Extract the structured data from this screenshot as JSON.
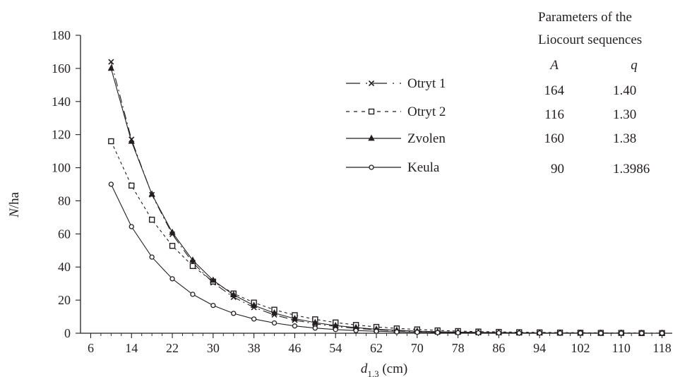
{
  "chart_data": {
    "type": "line",
    "title": "",
    "xlabel": {
      "main": "d",
      "sub": "1.3",
      "unit": " (cm)"
    },
    "ylabel": {
      "main": "N",
      "unit": "/ha"
    },
    "xlim": [
      4,
      120
    ],
    "ylim": [
      0,
      180
    ],
    "x_ticks": [
      6,
      14,
      22,
      30,
      38,
      46,
      54,
      62,
      70,
      78,
      86,
      94,
      102,
      110,
      118
    ],
    "y_ticks": [
      0,
      20,
      40,
      60,
      80,
      100,
      120,
      140,
      160,
      180
    ],
    "grid": false,
    "legend_position": "top-center",
    "x": [
      10,
      14,
      18,
      22,
      26,
      30,
      34,
      38,
      42,
      46,
      50,
      54,
      58,
      62,
      66,
      70,
      74,
      78,
      82,
      86,
      90,
      94,
      98,
      102,
      106,
      110,
      114,
      118
    ],
    "series": [
      {
        "name": "Otryt 1",
        "marker": "x",
        "line": "longdash",
        "values": [
          164,
          117.1,
          83.7,
          59.8,
          42.7,
          30.5,
          21.8,
          15.6,
          11.1,
          7.9,
          5.7,
          4.1,
          2.9,
          2.1,
          1.5,
          1.1,
          0.8,
          0.6,
          0.4,
          0.3,
          0.2,
          0.2,
          0.1,
          0.1,
          0.1,
          0.1,
          0,
          0
        ]
      },
      {
        "name": "Otryt 2",
        "marker": "square",
        "line": "dashed",
        "values": [
          116,
          89.2,
          68.6,
          52.8,
          40.6,
          31.2,
          24.0,
          18.5,
          14.2,
          10.9,
          8.4,
          6.5,
          5.0,
          3.8,
          2.9,
          2.3,
          1.7,
          1.3,
          1.0,
          0.8,
          0.6,
          0.5,
          0.4,
          0.3,
          0.2,
          0.2,
          0.1,
          0.1
        ]
      },
      {
        "name": "Zvolen",
        "marker": "triangle",
        "line": "solid",
        "values": [
          160,
          115.9,
          84.0,
          60.9,
          44.1,
          32.0,
          23.2,
          16.8,
          12.2,
          8.8,
          6.4,
          4.6,
          3.4,
          2.4,
          1.8,
          1.3,
          0.9,
          0.7,
          0.5,
          0.4,
          0.3,
          0.2,
          0.1,
          0.1,
          0.1,
          0.1,
          0,
          0
        ]
      },
      {
        "name": "Keula",
        "marker": "circle",
        "line": "solid",
        "values": [
          90,
          64.4,
          46.0,
          32.9,
          23.5,
          16.8,
          12.0,
          8.6,
          6.2,
          4.4,
          3.1,
          2.2,
          1.6,
          1.2,
          0.8,
          0.6,
          0.4,
          0.3,
          0.2,
          0.2,
          0.1,
          0.1,
          0.1,
          0.1,
          0,
          0,
          0,
          0
        ]
      }
    ]
  },
  "parameters": {
    "title_line1": "Parameters of the",
    "title_line2": "Liocourt sequences",
    "col_a": "A",
    "col_q": "q",
    "rows": [
      {
        "A": "164",
        "q": "1.40"
      },
      {
        "A": "116",
        "q": "1.30"
      },
      {
        "A": "160",
        "q": "1.38"
      },
      {
        "A": "90",
        "q": "1.3986"
      }
    ]
  },
  "colors": {
    "ink": "#231f20",
    "background": "#ffffff"
  }
}
